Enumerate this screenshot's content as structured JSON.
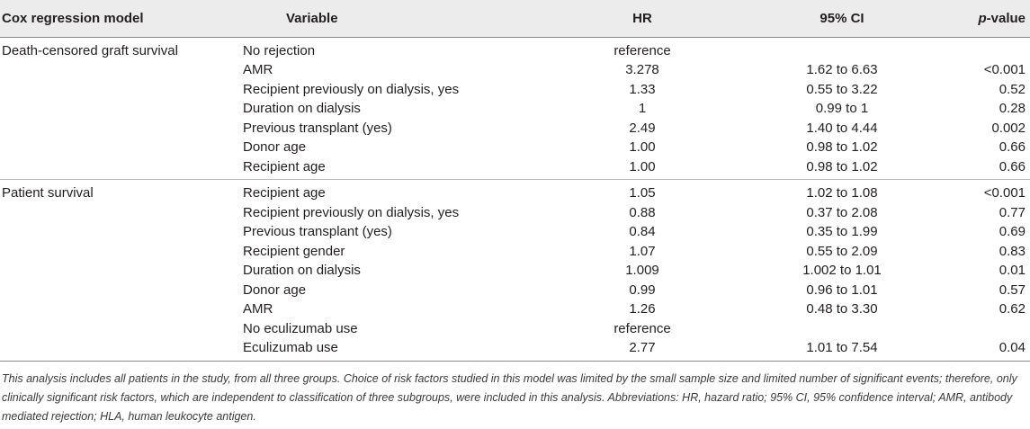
{
  "table": {
    "headers": {
      "model": "Cox regression model",
      "variable": "Variable",
      "hr": "HR",
      "ci": "95% CI",
      "p_italic": "p",
      "p_rest": "-value"
    },
    "groups": [
      {
        "model": "Death-censored graft survival",
        "rows": [
          {
            "variable": "No rejection",
            "hr": "reference",
            "ci": "",
            "p": ""
          },
          {
            "variable": "AMR",
            "hr": "3.278",
            "ci": "1.62 to 6.63",
            "p": "<0.001"
          },
          {
            "variable": "Recipient previously on dialysis, yes",
            "hr": "1.33",
            "ci": "0.55 to 3.22",
            "p": "0.52"
          },
          {
            "variable": "Duration on dialysis",
            "hr": "1",
            "ci": "0.99 to 1",
            "p": "0.28"
          },
          {
            "variable": "Previous transplant (yes)",
            "hr": "2.49",
            "ci": "1.40 to 4.44",
            "p": "0.002"
          },
          {
            "variable": "Donor age",
            "hr": "1.00",
            "ci": "0.98 to 1.02",
            "p": "0.66"
          },
          {
            "variable": "Recipient age",
            "hr": "1.00",
            "ci": "0.98 to 1.02",
            "p": "0.66"
          }
        ]
      },
      {
        "model": "Patient survival",
        "rows": [
          {
            "variable": "Recipient age",
            "hr": "1.05",
            "ci": "1.02 to 1.08",
            "p": "<0.001"
          },
          {
            "variable": "Recipient previously on dialysis, yes",
            "hr": "0.88",
            "ci": "0.37 to 2.08",
            "p": "0.77"
          },
          {
            "variable": "Previous transplant (yes)",
            "hr": "0.84",
            "ci": "0.35 to 1.99",
            "p": "0.69"
          },
          {
            "variable": "Recipient gender",
            "hr": "1.07",
            "ci": "0.55 to 2.09",
            "p": "0.83"
          },
          {
            "variable": "Duration on dialysis",
            "hr": "1.009",
            "ci": "1.002 to 1.01",
            "p": "0.01"
          },
          {
            "variable": "Donor age",
            "hr": "0.99",
            "ci": "0.96 to 1.01",
            "p": "0.57"
          },
          {
            "variable": "AMR",
            "hr": "1.26",
            "ci": "0.48 to 3.30",
            "p": "0.62"
          },
          {
            "variable": "No eculizumab use",
            "hr": "reference",
            "ci": "",
            "p": ""
          },
          {
            "variable": "Eculizumab use",
            "hr": "2.77",
            "ci": "1.01 to 7.54",
            "p": "0.04"
          }
        ]
      }
    ]
  },
  "footnote": "This analysis includes all patients in the study, from all three groups. Choice of risk factors studied in this model was limited by the small sample size and limited number of significant events; therefore, only clinically significant risk factors, which are independent to classification of three subgroups, were included in this analysis. Abbreviations: HR, hazard ratio; 95% CI, 95% confidence interval; AMR, antibody mediated rejection; HLA, human leukocyte antigen."
}
